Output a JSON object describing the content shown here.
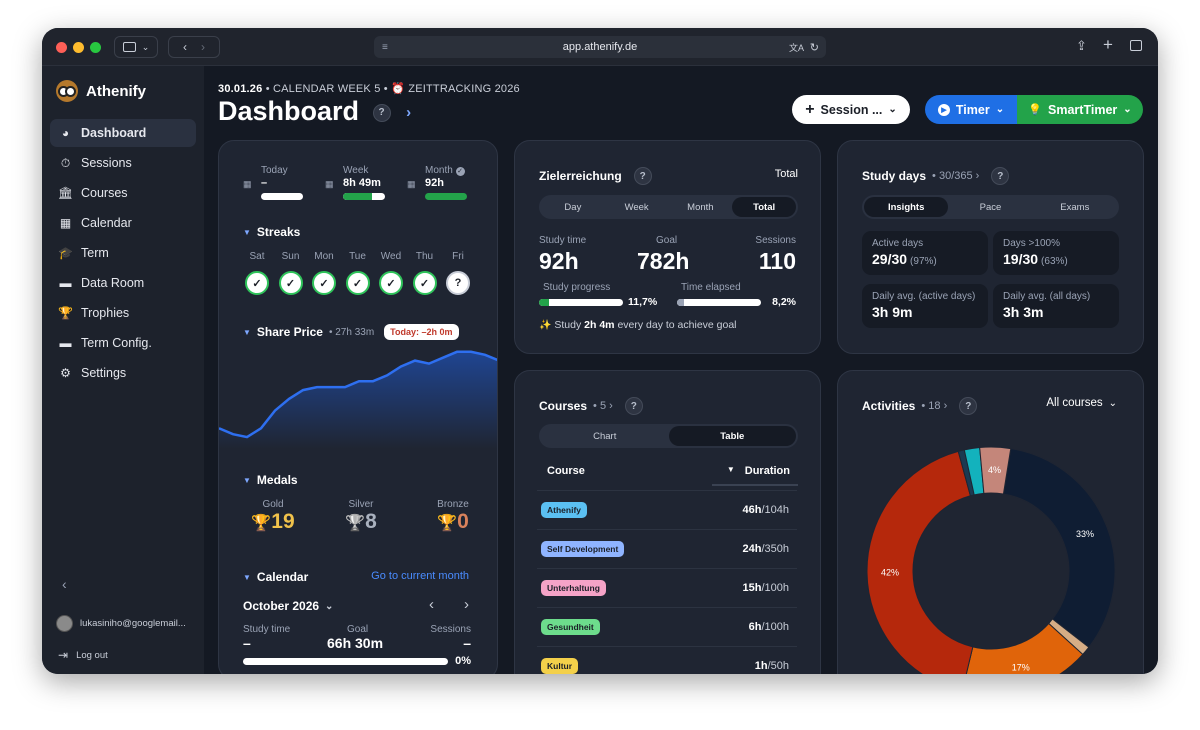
{
  "browser": {
    "url": "app.athenify.de"
  },
  "app": {
    "name": "Athenify"
  },
  "sidebar": {
    "items": [
      {
        "label": "Dashboard",
        "icon": "dashboard-icon",
        "active": true
      },
      {
        "label": "Sessions",
        "icon": "stopwatch-icon"
      },
      {
        "label": "Courses",
        "icon": "bank-icon"
      },
      {
        "label": "Calendar",
        "icon": "calendar-icon"
      },
      {
        "label": "Term",
        "icon": "graduation-cap-icon"
      },
      {
        "label": "Data Room",
        "icon": "folder-icon"
      },
      {
        "label": "Trophies",
        "icon": "trophy-icon"
      },
      {
        "label": "Term Config.",
        "icon": "folder-icon"
      },
      {
        "label": "Settings",
        "icon": "gear-icon"
      }
    ],
    "user_email": "lukasiniho@googlemail...",
    "logout": "Log out"
  },
  "header": {
    "date": "30.01.26",
    "week": "CALENDAR WEEK 5",
    "tracking": "ZEITTRACKING 2026",
    "title": "Dashboard",
    "session_btn": "Session ...",
    "timer_btn": "Timer",
    "smart_btn": "SmartTimer"
  },
  "summary": {
    "today_label": "Today",
    "today_value": "–",
    "week_label": "Week",
    "week_value": "8h 49m",
    "week_progress": 0.7,
    "month_label": "Month",
    "month_value": "92h",
    "month_progress": 1.0
  },
  "streaks": {
    "title": "Streaks",
    "days": [
      {
        "day": "Sat",
        "done": true
      },
      {
        "day": "Sun",
        "done": true
      },
      {
        "day": "Mon",
        "done": true
      },
      {
        "day": "Tue",
        "done": true
      },
      {
        "day": "Wed",
        "done": true
      },
      {
        "day": "Thu",
        "done": true
      },
      {
        "day": "Fri",
        "done": false
      }
    ]
  },
  "share_price": {
    "title": "Share Price",
    "time": "27h 33m",
    "badge": "Today: –2h 0m"
  },
  "medals": {
    "title": "Medals",
    "gold_label": "Gold",
    "gold": "19",
    "silver_label": "Silver",
    "silver": "8",
    "bronze_label": "Bronze",
    "bronze": "0"
  },
  "calendar": {
    "title": "Calendar",
    "link": "Go to current month",
    "month": "October 2026",
    "study_label": "Study time",
    "study": "–",
    "goal_label": "Goal",
    "goal": "66h 30m",
    "sessions_label": "Sessions",
    "sessions": "–",
    "pct": "0%"
  },
  "goal": {
    "title": "Zielerreichung",
    "scope": "Total",
    "tabs": [
      "Day",
      "Week",
      "Month",
      "Total"
    ],
    "study_label": "Study time",
    "study": "92h",
    "goal_label": "Goal",
    "goal": "782h",
    "sessions_label": "Sessions",
    "sessions": "110",
    "progress_label": "Study progress",
    "progress_pct": "11,7%",
    "progress": 0.117,
    "elapsed_label": "Time elapsed",
    "elapsed_pct": "8,2%",
    "elapsed": 0.082,
    "hint_pre": "Study",
    "hint_bold": "2h 4m",
    "hint_post": "every day to achieve goal"
  },
  "study_days": {
    "title": "Study days",
    "count": "30/365",
    "tabs": [
      "Insights",
      "Pace",
      "Exams"
    ],
    "boxes": [
      {
        "label": "Active days",
        "value": "29/30",
        "sub": "(97%)"
      },
      {
        "label": "Days >100%",
        "value": "19/30",
        "sub": "(63%)"
      },
      {
        "label": "Daily avg. (active days)",
        "value": "3h 9m",
        "sub": ""
      },
      {
        "label": "Daily avg. (all days)",
        "value": "3h 3m",
        "sub": ""
      }
    ]
  },
  "courses": {
    "title": "Courses",
    "count": "5",
    "tabs": [
      "Chart",
      "Table"
    ],
    "col_course": "Course",
    "col_duration": "Duration",
    "rows": [
      {
        "name": "Athenify",
        "done": "46h",
        "total": "/104h",
        "color": "#5bc0f2"
      },
      {
        "name": "Self Development",
        "done": "24h",
        "total": "/350h",
        "color": "#8fb4ff"
      },
      {
        "name": "Unterhaltung",
        "done": "15h",
        "total": "/100h",
        "color": "#f5a3c7"
      },
      {
        "name": "Gesundheit",
        "done": "6h",
        "total": "/100h",
        "color": "#6ddc8c"
      },
      {
        "name": "Kultur",
        "done": "1h",
        "total": "/50h",
        "color": "#f3d04a"
      }
    ]
  },
  "activities": {
    "title": "Activities",
    "count": "18",
    "filter": "All courses"
  },
  "chart_data": [
    {
      "type": "line",
      "title": "Share Price",
      "x": [
        0,
        1,
        2,
        3,
        4,
        5,
        6,
        7,
        8,
        9,
        10,
        11,
        12,
        13,
        14,
        15,
        16,
        17,
        18,
        19,
        20
      ],
      "values": [
        5,
        3,
        2,
        5,
        11,
        15,
        18,
        19,
        19,
        19,
        21,
        21,
        23,
        26,
        28,
        27,
        29,
        31,
        31,
        30,
        28
      ],
      "ylim": [
        0,
        34
      ]
    },
    {
      "type": "pie",
      "slices": [
        {
          "label": "33%",
          "value": 33,
          "color": "#0f1d33"
        },
        {
          "label": "",
          "value": 1.2,
          "color": "#d6ad86"
        },
        {
          "label": "17%",
          "value": 17,
          "color": "#e0640a"
        },
        {
          "label": "42%",
          "value": 42,
          "color": "#b5280c"
        },
        {
          "label": "",
          "value": 0.8,
          "color": "#1b3a52"
        },
        {
          "label": "",
          "value": 2,
          "color": "#13b2bd"
        },
        {
          "label": "4%",
          "value": 4,
          "color": "#c4867a"
        }
      ]
    }
  ]
}
